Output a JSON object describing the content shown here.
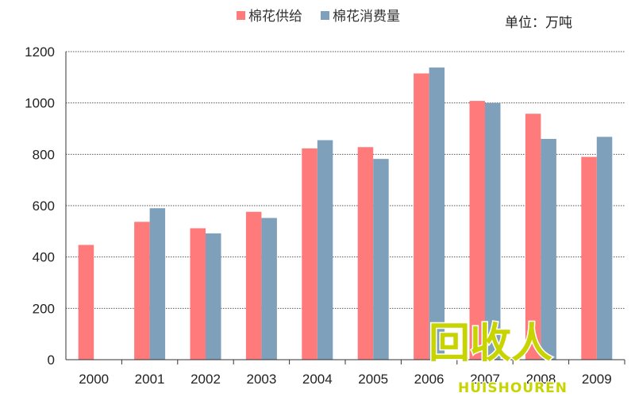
{
  "chart_data": {
    "type": "bar",
    "title": "",
    "xlabel": "",
    "ylabel": "",
    "unit_label": "单位：万吨",
    "categories": [
      "2000",
      "2001",
      "2002",
      "2003",
      "2004",
      "2005",
      "2006",
      "2007",
      "2008",
      "2009"
    ],
    "series": [
      {
        "name": "棉花供给",
        "color": "#ff7b7b",
        "values": [
          447,
          537,
          512,
          576,
          823,
          828,
          1115,
          1008,
          958,
          790
        ]
      },
      {
        "name": "棉花消费量",
        "color": "#7fa0ba",
        "values": [
          null,
          590,
          492,
          552,
          855,
          782,
          1138,
          1000,
          860,
          868
        ]
      }
    ],
    "ylim": [
      0,
      1200
    ],
    "yticks": [
      0,
      200,
      400,
      600,
      800,
      1000,
      1200
    ],
    "grid": true,
    "legend_position": "top-center"
  },
  "watermark": {
    "logo_text": "回收人",
    "sub_text": "HUISHOUREN",
    "color": "#c8d400"
  }
}
